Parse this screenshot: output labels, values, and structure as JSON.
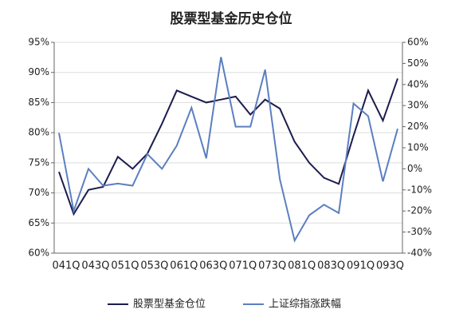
{
  "chart_data": {
    "type": "line",
    "title": "股票型基金历史仓位",
    "categories": [
      "041Q",
      null,
      "043Q",
      null,
      "051Q",
      null,
      "053Q",
      null,
      "061Q",
      null,
      "063Q",
      null,
      "071Q",
      null,
      "073Q",
      null,
      "081Q",
      null,
      "083Q",
      null,
      "091Q",
      null,
      "093Q",
      null
    ],
    "series": [
      {
        "name": "股票型基金仓位",
        "color": "#1c1c4e",
        "values": [
          73.5,
          66.5,
          70.5,
          71,
          76,
          74,
          76.5,
          81.5,
          87,
          86,
          85,
          85.5,
          86,
          83,
          85.5,
          84,
          78.5,
          75,
          72.5,
          71.5,
          79.5,
          87,
          82,
          89
        ]
      },
      {
        "name": "上证综指涨跌幅",
        "color": "#5b7fc0",
        "axis": "y2",
        "values": [
          17,
          -20,
          0,
          -8,
          -7,
          -8,
          7,
          0,
          11,
          29,
          5,
          53,
          20,
          20,
          47,
          -5,
          -34,
          -22,
          -17,
          -21,
          31,
          25,
          -6,
          19
        ]
      }
    ],
    "ylim": [
      60,
      95
    ],
    "yticks": [
      {
        "value": 60,
        "label": "60%"
      },
      {
        "value": 65,
        "label": "65%"
      },
      {
        "value": 70,
        "label": "70%"
      },
      {
        "value": 75,
        "label": "75%"
      },
      {
        "value": 80,
        "label": "80%"
      },
      {
        "value": 85,
        "label": "85%"
      },
      {
        "value": 90,
        "label": "90%"
      },
      {
        "value": 95,
        "label": "95%"
      }
    ],
    "y2lim": [
      -40,
      60
    ],
    "y2ticks": [
      {
        "value": -40,
        "label": "-40%"
      },
      {
        "value": -30,
        "label": "-30%"
      },
      {
        "value": -20,
        "label": "-20%"
      },
      {
        "value": -10,
        "label": "-10%"
      },
      {
        "value": 0,
        "label": "0%"
      },
      {
        "value": 10,
        "label": "10%"
      },
      {
        "value": 20,
        "label": "20%"
      },
      {
        "value": 30,
        "label": "30%"
      },
      {
        "value": 40,
        "label": "40%"
      },
      {
        "value": 50,
        "label": "50%"
      },
      {
        "value": 60,
        "label": "60%"
      }
    ],
    "grid": true,
    "legend": "bottom"
  }
}
